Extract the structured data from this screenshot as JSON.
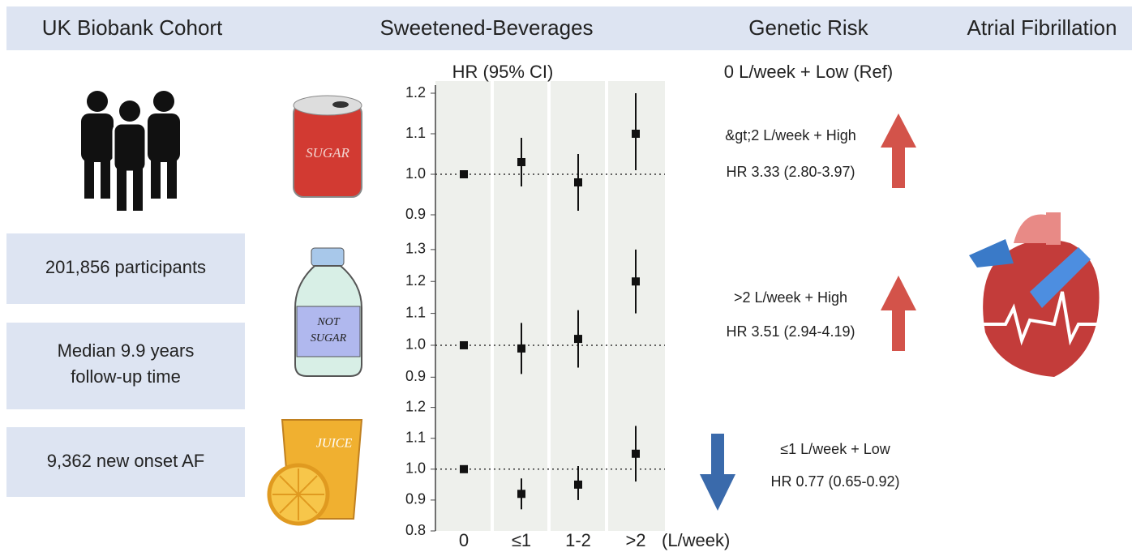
{
  "header": [
    "UK Biobank Cohort",
    "Sweetened-Beverages",
    "Genetic Risk",
    "Atrial Fibrillation"
  ],
  "cohort": [
    "201,856 participants",
    [
      "Median  9.9 years",
      "follow-up time"
    ],
    "9,362 new onset AF"
  ],
  "icons": {
    "can": "SUGAR",
    "bottle": [
      "NOT",
      "SUGAR"
    ],
    "juice": "JUICE"
  },
  "forest": {
    "title": "HR (95% CI)",
    "categories": [
      "0",
      "≤1",
      "1-2",
      ">2"
    ],
    "x_label": "(L/week)",
    "plots": [
      {
        "ylim": [
          0.85,
          1.2
        ],
        "yticks": [
          0.9,
          {
            "value": 1,
            "label": "1.0"
          },
          1.1,
          1.2
        ],
        "ref_line": 1,
        "values": [
          1,
          1.03,
          0.98,
          1.1
        ],
        "lower": [
          null,
          0.97,
          0.91,
          1.01
        ],
        "upper": [
          null,
          1.09,
          1.05,
          1.2
        ]
      },
      {
        "ylim": [
          0.85,
          1.32
        ],
        "yticks": [
          0.9,
          {
            "value": 1,
            "label": "1.0"
          },
          1.1,
          1.2,
          1.3
        ],
        "ref_line": 1,
        "values": [
          1,
          0.99,
          1.02,
          1.2
        ],
        "lower": [
          null,
          0.91,
          0.93,
          1.1
        ],
        "upper": [
          null,
          1.07,
          1.11,
          1.3
        ]
      },
      {
        "ylim": [
          0.8,
          1.22
        ],
        "yticks": [
          0.8,
          0.9,
          {
            "value": 1,
            "label": "1.0"
          },
          1.1,
          1.2
        ],
        "ref_line": 1,
        "values": [
          1,
          0.92,
          0.95,
          1.05
        ],
        "lower": [
          null,
          0.87,
          0.9,
          0.96
        ],
        "upper": [
          null,
          0.97,
          1.01,
          1.14
        ]
      }
    ]
  },
  "genetic": {
    "reference": "0 L/week + Low (Ref)",
    "results": [
      [
        "&gt;2 L/week + High",
        "HR 3.33 (2.80-3.97)"
      ],
      [
        ">2 L/week + High",
        "HR 3.51 (2.94-4.19)"
      ],
      [
        "≤1 L/week + Low",
        "HR 0.77 (0.65-0.92)"
      ]
    ]
  }
}
